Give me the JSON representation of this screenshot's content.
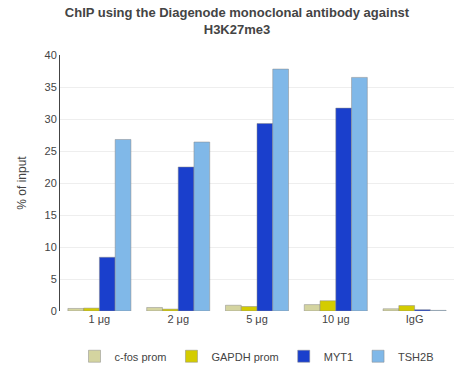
{
  "chart_data": {
    "type": "bar",
    "title": "ChIP using the Diagenode monoclonal antibody against\nH3K27me3",
    "ylabel": "% of input",
    "categories": [
      "1 μg",
      "2 μg",
      "5 μg",
      "10 μg",
      "IgG"
    ],
    "series": [
      {
        "name": "c-fos prom",
        "color": "#d4d4a0",
        "values": [
          0.4,
          0.55,
          0.9,
          1.0,
          0.35
        ]
      },
      {
        "name": "GAPDH prom",
        "color": "#d4cc00",
        "values": [
          0.45,
          0.3,
          0.7,
          1.6,
          0.85
        ]
      },
      {
        "name": "MYT1",
        "color": "#1a3fcc",
        "values": [
          8.4,
          22.5,
          29.3,
          31.7,
          0.2
        ]
      },
      {
        "name": "TSH2B",
        "color": "#80b8e8",
        "values": [
          26.8,
          26.4,
          37.8,
          36.5,
          0.1
        ]
      }
    ],
    "ylim": [
      0,
      40
    ],
    "yticks": [
      0,
      5,
      10,
      15,
      20,
      25,
      30,
      35,
      40
    ],
    "grid": true,
    "legend": "bottom"
  }
}
